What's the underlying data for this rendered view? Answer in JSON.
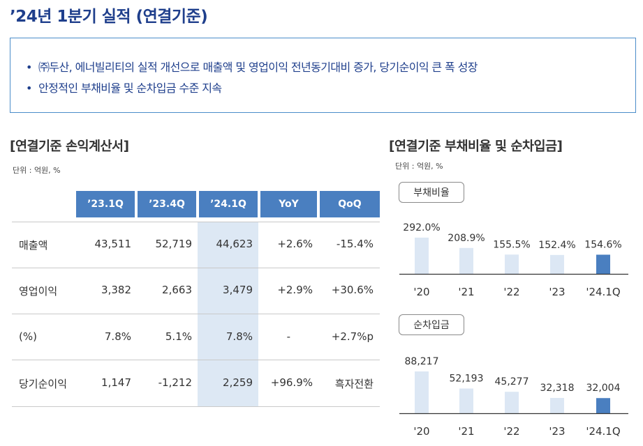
{
  "title": "’24년 1분기 실적 (연결기준)",
  "summary": [
    "㈜두산, 에너빌리티의 실적 개선으로 매출액 및 영업이익 전년동기대비 증가, 당기순이익 큰 폭 성장",
    "안정적인 부채비율 및 순차입금 수준 지속"
  ],
  "bullet_char": "•",
  "income": {
    "title": "[연결기준 손익계산서]",
    "unit": "단위 : 억원, %",
    "columns": [
      "’23.1Q",
      "’23.4Q",
      "’24.1Q",
      "YoY",
      "QoQ"
    ],
    "highlight_column": "’24.1Q",
    "rows": [
      {
        "label": "매출액",
        "values": [
          "43,511",
          "52,719",
          "44,623",
          "+2.6%",
          "-15.4%"
        ]
      },
      {
        "label": "영업이익",
        "values": [
          "3,382",
          "2,663",
          "3,479",
          "+2.9%",
          "+30.6%"
        ]
      },
      {
        "label": "(%)",
        "values": [
          "7.8%",
          "5.1%",
          "7.8%",
          "-",
          "+2.7%p"
        ]
      },
      {
        "label": "당기순이익",
        "values": [
          "1,147",
          "-1,212",
          "2,259",
          "+96.9%",
          "흑자전환"
        ]
      }
    ]
  },
  "right_panel": {
    "title": "[연결기준 부채비율 및 순차입금]",
    "unit": "단위 : 억원, %"
  },
  "colors": {
    "title": "#1f3f8c",
    "header_blue": "#4a7fc0",
    "bar_light": "#dce7f4",
    "bar_dark": "#4a7fc0",
    "box_border": "#4a8cc9"
  },
  "chart_data": [
    {
      "type": "bar",
      "title": "부채비율",
      "categories": [
        "'20",
        "'21",
        "'22",
        "'23",
        "'24.1Q"
      ],
      "values": [
        292.0,
        208.9,
        155.5,
        152.4,
        154.6
      ],
      "labels": [
        "292.0%",
        "208.9%",
        "155.5%",
        "152.4%",
        "154.6%"
      ],
      "highlight_index": 4,
      "ylim": [
        0,
        292
      ]
    },
    {
      "type": "bar",
      "title": "순차입금",
      "categories": [
        "'20",
        "'21",
        "'22",
        "'23",
        "'24.1Q"
      ],
      "values": [
        88217,
        52193,
        45277,
        32318,
        32004
      ],
      "labels": [
        "88,217",
        "52,193",
        "45,277",
        "32,318",
        "32,004"
      ],
      "highlight_index": 4,
      "ylim": [
        0,
        88217
      ]
    }
  ]
}
